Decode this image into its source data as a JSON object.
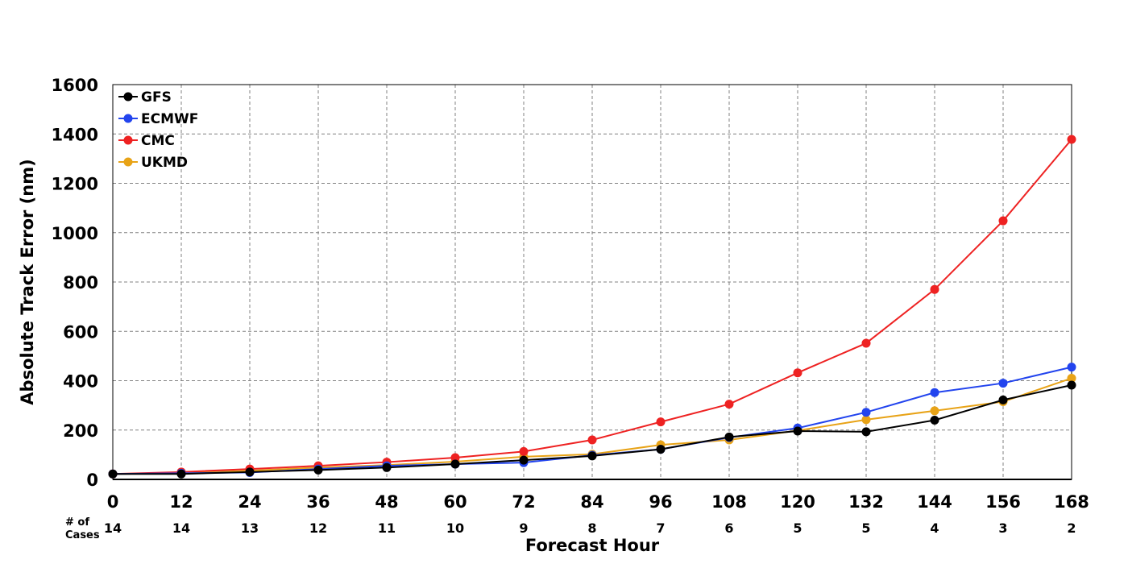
{
  "chart_data": {
    "type": "line",
    "title": "",
    "xlabel": "Forecast Hour",
    "ylabel": "Absolute Track Error (nm)",
    "x": [
      0,
      12,
      24,
      36,
      48,
      60,
      72,
      84,
      96,
      108,
      120,
      132,
      144,
      156,
      168
    ],
    "xticks": [
      "0",
      "12",
      "24",
      "36",
      "48",
      "60",
      "72",
      "84",
      "96",
      "108",
      "120",
      "132",
      "144",
      "156",
      "168"
    ],
    "ylim": [
      0,
      1600
    ],
    "yticks": [
      "0",
      "200",
      "400",
      "600",
      "800",
      "1000",
      "1200",
      "1400",
      "1600"
    ],
    "cases_label_line1": "# of",
    "cases_label_line2": "Cases",
    "cases": [
      "14",
      "14",
      "13",
      "12",
      "11",
      "10",
      "9",
      "8",
      "7",
      "6",
      "5",
      "5",
      "4",
      "3",
      "2"
    ],
    "grid": true,
    "legend_position": "top-left",
    "series": [
      {
        "name": "UKMD",
        "color": "#e8a317",
        "values": [
          22,
          25,
          35,
          48,
          58,
          72,
          92,
          102,
          140,
          160,
          198,
          242,
          278,
          315,
          410
        ]
      },
      {
        "name": "CMC",
        "color": "#ee2222",
        "values": [
          22,
          30,
          42,
          55,
          70,
          88,
          113,
          160,
          233,
          305,
          432,
          552,
          770,
          1048,
          1378
        ]
      },
      {
        "name": "ECMWF",
        "color": "#2244ee",
        "values": [
          22,
          25,
          28,
          42,
          55,
          62,
          68,
          98,
          122,
          170,
          208,
          272,
          352,
          390,
          455
        ]
      },
      {
        "name": "GFS",
        "color": "#000000",
        "values": [
          22,
          22,
          30,
          38,
          48,
          62,
          78,
          95,
          122,
          172,
          196,
          193,
          240,
          322,
          382
        ]
      }
    ],
    "legend_order": [
      "GFS",
      "ECMWF",
      "CMC",
      "UKMD"
    ]
  }
}
